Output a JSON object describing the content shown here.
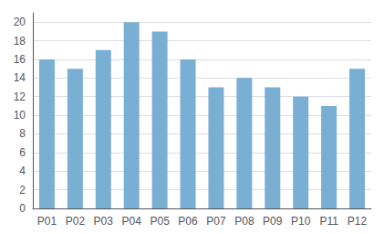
{
  "chart_data": {
    "type": "bar",
    "categories": [
      "P01",
      "P02",
      "P03",
      "P04",
      "P05",
      "P06",
      "P07",
      "P08",
      "P09",
      "P10",
      "P11",
      "P12"
    ],
    "values": [
      16,
      15,
      17,
      20,
      19,
      16,
      13,
      14,
      13,
      12,
      11,
      15
    ],
    "color": "#7aafd4",
    "ylim": [
      0,
      21
    ],
    "yticks": [
      0,
      2,
      4,
      6,
      8,
      10,
      12,
      14,
      16,
      18,
      20
    ],
    "grid": true
  }
}
